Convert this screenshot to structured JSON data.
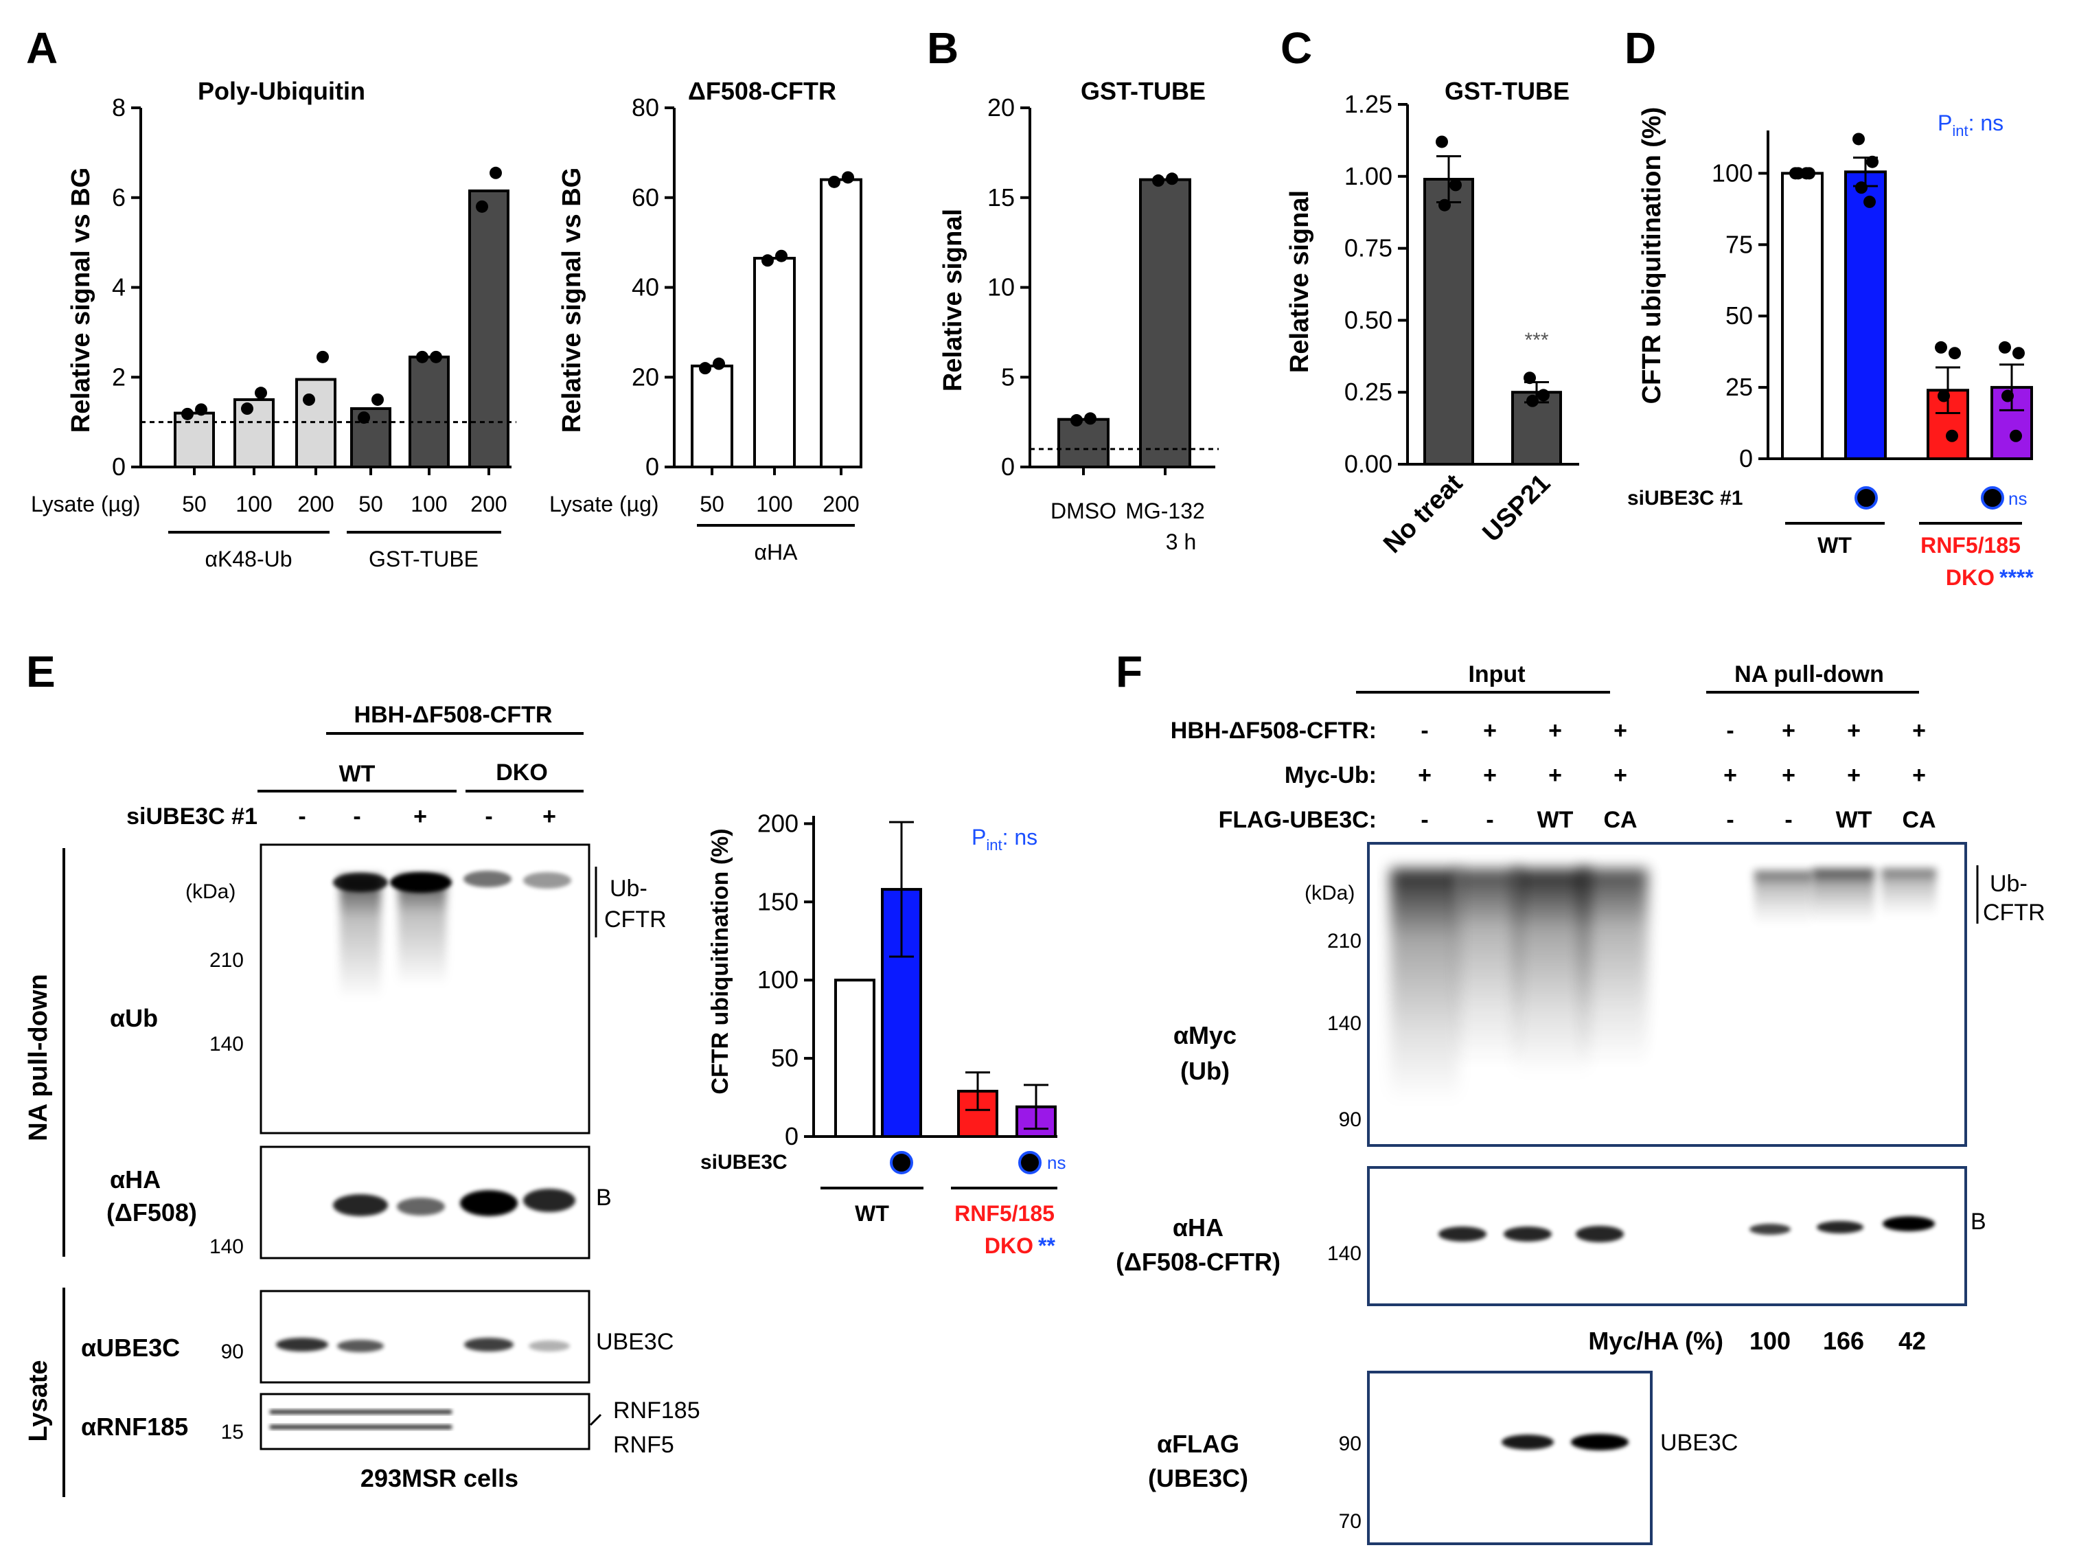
{
  "panel_letters": [
    "A",
    "B",
    "C",
    "D",
    "E",
    "F"
  ],
  "charts": {
    "a1": {
      "type": "bar",
      "title": "Poly-Ubiquitin",
      "ylabel": "Relative signal vs BG",
      "ylim": [
        0,
        8
      ],
      "yticks": [
        "0",
        "2",
        "4",
        "6",
        "8"
      ],
      "yticks_v": [
        0,
        2,
        4,
        6,
        8
      ],
      "xaxis_title": "Lysate (µg)",
      "categories": [
        "50",
        "100",
        "200",
        "50",
        "100",
        "200"
      ],
      "values": [
        1.2,
        1.5,
        1.95,
        1.3,
        2.45,
        6.15
      ],
      "points": [
        [
          1.18,
          1.28
        ],
        [
          1.3,
          1.65
        ],
        [
          1.5,
          2.45
        ],
        [
          1.1,
          1.5
        ],
        [
          2.45,
          2.45
        ],
        [
          5.8,
          6.55
        ]
      ],
      "colors": [
        "#d9d9d9",
        "#d9d9d9",
        "#d9d9d9",
        "#4a4a4a",
        "#4a4a4a",
        "#4a4a4a"
      ],
      "groups": [
        {
          "label": "αK48-Ub"
        },
        {
          "label": "GST-TUBE"
        }
      ],
      "baseline": 1
    },
    "a2": {
      "type": "bar",
      "title": "ΔF508-CFTR",
      "ylabel": "Relative signal vs BG",
      "ylim": [
        0,
        80
      ],
      "yticks": [
        "0",
        "20",
        "40",
        "60",
        "80"
      ],
      "yticks_v": [
        0,
        20,
        40,
        60,
        80
      ],
      "xaxis_title": "Lysate (µg)",
      "categories": [
        "50",
        "100",
        "200"
      ],
      "values": [
        22.5,
        46.5,
        64
      ],
      "points": [
        [
          22,
          23
        ],
        [
          46,
          47
        ],
        [
          63.5,
          64.5
        ]
      ],
      "colors": [
        "#ffffff",
        "#ffffff",
        "#ffffff"
      ],
      "groups": [
        {
          "label": "αHA"
        }
      ]
    },
    "b": {
      "type": "bar",
      "title": "GST-TUBE",
      "ylabel": "Relative signal",
      "ylim": [
        0,
        20
      ],
      "yticks": [
        "0",
        "5",
        "10",
        "15",
        "20"
      ],
      "yticks_v": [
        0,
        5,
        10,
        15,
        20
      ],
      "categories": [
        "DMSO",
        "MG-132"
      ],
      "sublabel": "3 h",
      "values": [
        2.65,
        16
      ],
      "points": [
        [
          2.6,
          2.7
        ],
        [
          15.95,
          16.05
        ]
      ],
      "colors": [
        "#4a4a4a",
        "#4a4a4a"
      ],
      "baseline": 1
    },
    "c": {
      "type": "bar",
      "title": "GST-TUBE",
      "ylabel": "Relative signal",
      "ylim": [
        0,
        1.25
      ],
      "yticks": [
        "0.00",
        "0.25",
        "0.50",
        "0.75",
        "1.00",
        "1.25"
      ],
      "yticks_v": [
        0,
        0.25,
        0.5,
        0.75,
        1,
        1.25
      ],
      "categories": [
        "No treat",
        "USP21"
      ],
      "values": [
        0.99,
        0.25
      ],
      "points": [
        [
          1.12,
          0.97,
          0.9
        ],
        [
          0.3,
          0.24,
          0.22
        ]
      ],
      "colors": [
        "#4a4a4a",
        "#4a4a4a"
      ],
      "sig": "***"
    },
    "d": {
      "type": "bar",
      "ylabel": "CFTR ubiquitination (%)",
      "ylim": [
        0,
        115
      ],
      "yticks": [
        "0",
        "25",
        "50",
        "75",
        "100"
      ],
      "yticks_v": [
        0,
        25,
        50,
        75,
        100
      ],
      "values": [
        100,
        100.5,
        24,
        25
      ],
      "points": [
        [
          100,
          100,
          100,
          100
        ],
        [
          112,
          104,
          95,
          90
        ],
        [
          39,
          37,
          22,
          8
        ],
        [
          39,
          37,
          22,
          8
        ]
      ],
      "colors": [
        "#ffffff",
        "#0a1aff",
        "#ff1a1a",
        "#9a18e8"
      ],
      "pint_prefix": "P",
      "pint_sub": "int",
      "pint_suffix": ": ns",
      "row_label": "siUBE3C #1",
      "ns": "ns",
      "group1": "WT",
      "group2a": "RNF5/185",
      "group2b": "DKO",
      "stars": "****"
    },
    "e": {
      "type": "bar",
      "ylabel": "CFTR ubiquitination (%)",
      "ylim": [
        0,
        205
      ],
      "yticks": [
        "0",
        "50",
        "100",
        "150",
        "200"
      ],
      "yticks_v": [
        0,
        50,
        100,
        150,
        200
      ],
      "values": [
        100,
        158,
        29,
        19
      ],
      "errors": [
        0,
        43,
        12,
        14
      ],
      "colors": [
        "#ffffff",
        "#0a1aff",
        "#ff1a1a",
        "#9a18e8"
      ],
      "pint_prefix": "P",
      "pint_sub": "int",
      "pint_suffix": ": ns",
      "row_label": "siUBE3C",
      "ns": "ns",
      "group1": "WT",
      "group2a": "RNF5/185",
      "group2b": "DKO",
      "stars": "**"
    }
  },
  "blot_e": {
    "construct": "HBH-ΔF508-CFTR",
    "wt": "WT",
    "dko": "DKO",
    "sirow_label": "siUBE3C #1",
    "sirow_vals": [
      "-",
      "-",
      "+",
      "-",
      "+"
    ],
    "side_pd": "NA pull-down",
    "side_lys": "Lysate",
    "kda": "(kDa)",
    "mw1": [
      "210",
      "140"
    ],
    "mw2": "140",
    "mw3": "90",
    "mw4": "15",
    "ab1": "αUb",
    "ab2a": "αHA",
    "ab2b": "(ΔF508)",
    "ab3": "αUBE3C",
    "ab4": "αRNF185",
    "lab1a": "Ub-",
    "lab1b": "CFTR",
    "lab2": "B",
    "lab3": "UBE3C",
    "lab4a": "RNF185",
    "lab4b": "RNF5",
    "cells": "293MSR cells"
  },
  "blot_f": {
    "input": "Input",
    "pulldown": "NA pull-down",
    "rows": [
      {
        "label": "HBH-ΔF508-CFTR:",
        "vals": [
          "-",
          "+",
          "+",
          "+",
          "-",
          "+",
          "+",
          "+"
        ]
      },
      {
        "label": "Myc-Ub:",
        "vals": [
          "+",
          "+",
          "+",
          "+",
          "+",
          "+",
          "+",
          "+"
        ]
      },
      {
        "label": "FLAG-UBE3C:",
        "vals": [
          "-",
          "-",
          "WT",
          "CA",
          "-",
          "-",
          "WT",
          "CA"
        ]
      }
    ],
    "kda": "(kDa)",
    "mw1": [
      "210",
      "140",
      "90"
    ],
    "mw2": "140",
    "mw3": [
      "90",
      "70"
    ],
    "ab1a": "αMyc",
    "ab1b": "(Ub)",
    "ab2a": "αHA",
    "ab2b": "(ΔF508-CFTR)",
    "ab3a": "αFLAG",
    "ab3b": "(UBE3C)",
    "lab1a": "Ub-",
    "lab1b": "CFTR",
    "lab2": "B",
    "lab3": "UBE3C",
    "ratio_label": "Myc/HA (%)",
    "ratios": [
      "100",
      "166",
      "42"
    ]
  }
}
